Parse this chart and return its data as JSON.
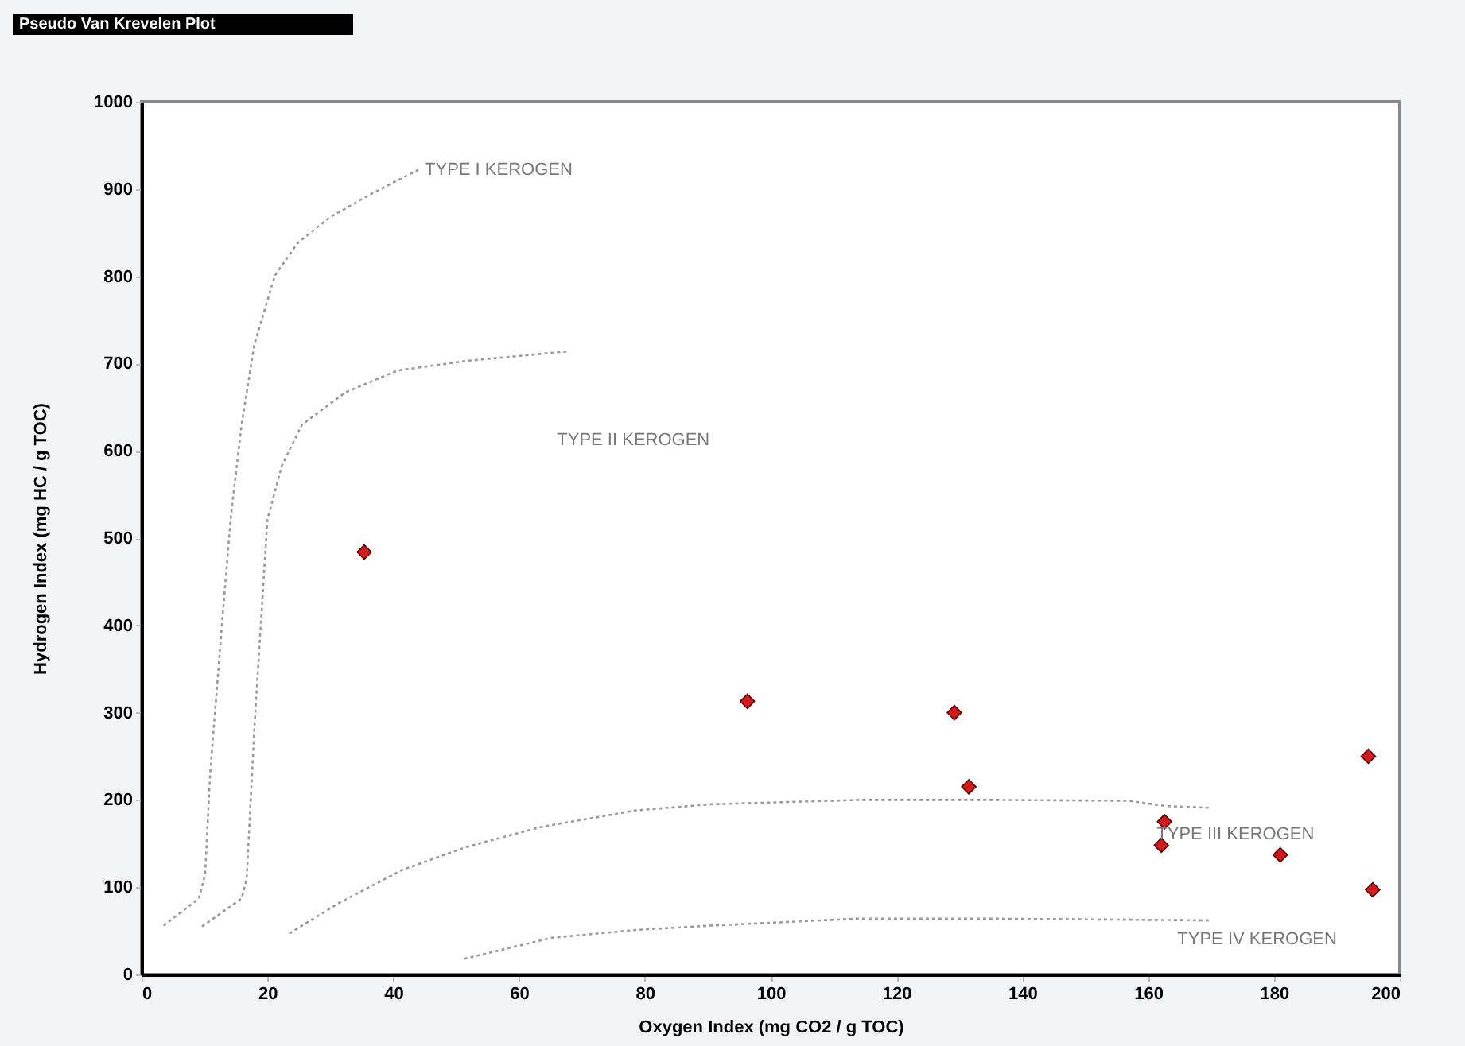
{
  "chart_data": {
    "type": "scatter",
    "title": "Pseudo Van Krevelen Plot",
    "xlabel": "Oxygen Index (mg CO2 / g TOC)",
    "ylabel": "Hydrogen Index (mg HC / g TOC)",
    "xlim": [
      0,
      200
    ],
    "ylim": [
      0,
      1000
    ],
    "xticks": [
      0,
      20,
      40,
      60,
      80,
      100,
      120,
      140,
      160,
      180,
      200
    ],
    "yticks": [
      0,
      100,
      200,
      300,
      400,
      500,
      600,
      700,
      800,
      900,
      1000
    ],
    "series": [
      {
        "color": "#d41a1a",
        "marker": "diamond",
        "x": [
          35.4,
          96.3,
          129.2,
          131.5,
          162.6,
          162.1,
          181,
          195,
          195.7
        ],
        "values": [
          484,
          313,
          300,
          215,
          175,
          148,
          137,
          250,
          97
        ]
      },
      {
        "type": "line",
        "color": "#9a9a9a",
        "line_style": "dotted",
        "x": [
          3.5,
          9.1,
          10.1,
          10.9,
          12.9,
          14.2,
          15.9,
          17.9,
          21.2,
          24.8,
          29.8,
          36.4,
          44
        ],
        "values": [
          56,
          87,
          115,
          230,
          412,
          525,
          630,
          721,
          801,
          838,
          867,
          894,
          922
        ]
      },
      {
        "type": "line",
        "color": "#9a9a9a",
        "line_style": "dotted",
        "x": [
          9.6,
          15.9,
          16.7,
          18,
          20,
          22.3,
          25.5,
          32.4,
          40.7,
          51.6,
          67.8
        ],
        "values": [
          55,
          87,
          109,
          291,
          521,
          583,
          630,
          667,
          692,
          703,
          714
        ]
      },
      {
        "type": "line",
        "color": "#9a9a9a",
        "line_style": "dotted",
        "x": [
          23.5,
          31.4,
          41.5,
          51.6,
          63.5,
          78.6,
          90.5,
          114,
          136,
          157,
          162.8,
          169.7
        ],
        "values": [
          47,
          82,
          120,
          146,
          169,
          188,
          195,
          200,
          200,
          199,
          193,
          191
        ]
      },
      {
        "type": "line",
        "color": "#9a9a9a",
        "line_style": "dotted",
        "x": [
          51.3,
          65.2,
          78.6,
          90.5,
          114,
          134,
          169.7
        ],
        "values": [
          18,
          42,
          51,
          56,
          64,
          64,
          62
        ]
      }
    ],
    "annotations": [
      "TYPE I KEROGEN",
      "TYPE II KEROGEN",
      "TYPE III KEROGEN",
      "TYPE IV KEROGEN"
    ]
  }
}
